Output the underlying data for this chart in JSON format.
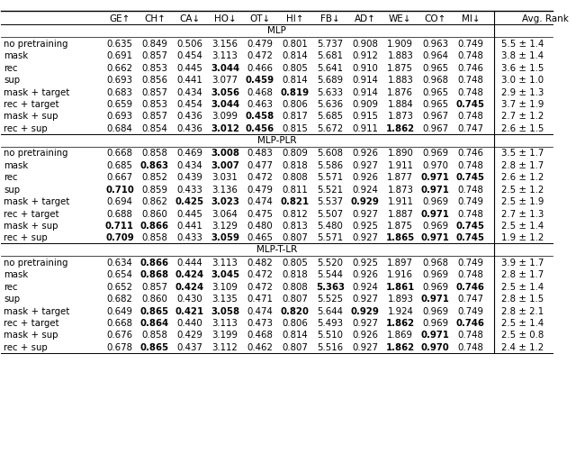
{
  "col_headers": [
    "GE↑",
    "CH↑",
    "CA↓",
    "HO↓",
    "OT↓",
    "HI↑",
    "FB↓",
    "AD↑",
    "WE↓",
    "CO↑",
    "MI↓",
    "Avg. Rank"
  ],
  "sections": [
    {
      "title": "MLP",
      "rows": [
        {
          "name": "no pretraining",
          "vals": [
            "0.635",
            "0.849",
            "0.506",
            "3.156",
            "0.479",
            "0.801",
            "5.737",
            "0.908",
            "1.909",
            "0.963",
            "0.749",
            "5.5 ± 1.4"
          ]
        },
        {
          "name": "mask",
          "vals": [
            "0.691",
            "0.857",
            "0.454",
            "3.113",
            "0.472",
            "0.814",
            "5.681",
            "0.912",
            "1.883",
            "0.964",
            "0.748",
            "3.8 ± 1.4"
          ]
        },
        {
          "name": "rec",
          "vals": [
            "0.662",
            "0.853",
            "0.445",
            "3.044",
            "0.466",
            "0.805",
            "5.641",
            "0.910",
            "1.875",
            "0.965",
            "0.746",
            "3.6 ± 1.5"
          ]
        },
        {
          "name": "sup",
          "vals": [
            "0.693",
            "0.856",
            "0.441",
            "3.077",
            "0.459",
            "0.814",
            "5.689",
            "0.914",
            "1.883",
            "0.968",
            "0.748",
            "3.0 ± 1.0"
          ]
        },
        {
          "name": "mask + target",
          "vals": [
            "0.683",
            "0.857",
            "0.434",
            "3.056",
            "0.468",
            "0.819",
            "5.633",
            "0.914",
            "1.876",
            "0.965",
            "0.748",
            "2.9 ± 1.3"
          ]
        },
        {
          "name": "rec + target",
          "vals": [
            "0.659",
            "0.853",
            "0.454",
            "3.044",
            "0.463",
            "0.806",
            "5.636",
            "0.909",
            "1.884",
            "0.965",
            "0.745",
            "3.7 ± 1.9"
          ]
        },
        {
          "name": "mask + sup",
          "vals": [
            "0.693",
            "0.857",
            "0.436",
            "3.099",
            "0.458",
            "0.817",
            "5.685",
            "0.915",
            "1.873",
            "0.967",
            "0.748",
            "2.7 ± 1.2"
          ]
        },
        {
          "name": "rec + sup",
          "vals": [
            "0.684",
            "0.854",
            "0.436",
            "3.012",
            "0.456",
            "0.815",
            "5.672",
            "0.911",
            "1.862",
            "0.967",
            "0.747",
            "2.6 ± 1.5"
          ]
        }
      ],
      "bold": [
        [
          false,
          false,
          false,
          false,
          false,
          false,
          false,
          false,
          false,
          false,
          false,
          false
        ],
        [
          false,
          false,
          false,
          false,
          false,
          false,
          false,
          false,
          false,
          false,
          false,
          false
        ],
        [
          false,
          false,
          false,
          true,
          false,
          false,
          false,
          false,
          false,
          false,
          false,
          false
        ],
        [
          false,
          false,
          false,
          false,
          true,
          false,
          false,
          false,
          false,
          false,
          false,
          false
        ],
        [
          false,
          false,
          false,
          true,
          false,
          true,
          false,
          false,
          false,
          false,
          false,
          false
        ],
        [
          false,
          false,
          false,
          true,
          false,
          false,
          false,
          false,
          false,
          false,
          true,
          false
        ],
        [
          false,
          false,
          false,
          false,
          true,
          false,
          false,
          false,
          false,
          false,
          false,
          false
        ],
        [
          false,
          false,
          false,
          true,
          true,
          false,
          false,
          false,
          true,
          false,
          false,
          false
        ]
      ]
    },
    {
      "title": "MLP-PLR",
      "rows": [
        {
          "name": "no pretraining",
          "vals": [
            "0.668",
            "0.858",
            "0.469",
            "3.008",
            "0.483",
            "0.809",
            "5.608",
            "0.926",
            "1.890",
            "0.969",
            "0.746",
            "3.5 ± 1.7"
          ]
        },
        {
          "name": "mask",
          "vals": [
            "0.685",
            "0.863",
            "0.434",
            "3.007",
            "0.477",
            "0.818",
            "5.586",
            "0.927",
            "1.911",
            "0.970",
            "0.748",
            "2.8 ± 1.7"
          ]
        },
        {
          "name": "rec",
          "vals": [
            "0.667",
            "0.852",
            "0.439",
            "3.031",
            "0.472",
            "0.808",
            "5.571",
            "0.926",
            "1.877",
            "0.971",
            "0.745",
            "2.6 ± 1.2"
          ]
        },
        {
          "name": "sup",
          "vals": [
            "0.710",
            "0.859",
            "0.433",
            "3.136",
            "0.479",
            "0.811",
            "5.521",
            "0.924",
            "1.873",
            "0.971",
            "0.748",
            "2.5 ± 1.2"
          ]
        },
        {
          "name": "mask + target",
          "vals": [
            "0.694",
            "0.862",
            "0.425",
            "3.023",
            "0.474",
            "0.821",
            "5.537",
            "0.929",
            "1.911",
            "0.969",
            "0.749",
            "2.5 ± 1.9"
          ]
        },
        {
          "name": "rec + target",
          "vals": [
            "0.688",
            "0.860",
            "0.445",
            "3.064",
            "0.475",
            "0.812",
            "5.507",
            "0.927",
            "1.887",
            "0.971",
            "0.748",
            "2.7 ± 1.3"
          ]
        },
        {
          "name": "mask + sup",
          "vals": [
            "0.711",
            "0.866",
            "0.441",
            "3.129",
            "0.480",
            "0.813",
            "5.480",
            "0.925",
            "1.875",
            "0.969",
            "0.745",
            "2.5 ± 1.4"
          ]
        },
        {
          "name": "rec + sup",
          "vals": [
            "0.709",
            "0.858",
            "0.433",
            "3.059",
            "0.465",
            "0.807",
            "5.571",
            "0.927",
            "1.865",
            "0.971",
            "0.745",
            "1.9 ± 1.2"
          ]
        }
      ],
      "bold": [
        [
          false,
          false,
          false,
          true,
          false,
          false,
          false,
          false,
          false,
          false,
          false,
          false
        ],
        [
          false,
          true,
          false,
          true,
          false,
          false,
          false,
          false,
          false,
          false,
          false,
          false
        ],
        [
          false,
          false,
          false,
          false,
          false,
          false,
          false,
          false,
          false,
          true,
          true,
          false
        ],
        [
          true,
          false,
          false,
          false,
          false,
          false,
          false,
          false,
          false,
          true,
          false,
          false
        ],
        [
          false,
          false,
          true,
          true,
          false,
          true,
          false,
          true,
          false,
          false,
          false,
          false
        ],
        [
          false,
          false,
          false,
          false,
          false,
          false,
          false,
          false,
          false,
          true,
          false,
          false
        ],
        [
          true,
          true,
          false,
          false,
          false,
          false,
          false,
          false,
          false,
          false,
          true,
          false
        ],
        [
          true,
          false,
          false,
          true,
          false,
          false,
          false,
          false,
          true,
          true,
          true,
          false
        ]
      ]
    },
    {
      "title": "MLP-T-LR",
      "rows": [
        {
          "name": "no pretraining",
          "vals": [
            "0.634",
            "0.866",
            "0.444",
            "3.113",
            "0.482",
            "0.805",
            "5.520",
            "0.925",
            "1.897",
            "0.968",
            "0.749",
            "3.9 ± 1.7"
          ]
        },
        {
          "name": "mask",
          "vals": [
            "0.654",
            "0.868",
            "0.424",
            "3.045",
            "0.472",
            "0.818",
            "5.544",
            "0.926",
            "1.916",
            "0.969",
            "0.748",
            "2.8 ± 1.7"
          ]
        },
        {
          "name": "rec",
          "vals": [
            "0.652",
            "0.857",
            "0.424",
            "3.109",
            "0.472",
            "0.808",
            "5.363",
            "0.924",
            "1.861",
            "0.969",
            "0.746",
            "2.5 ± 1.4"
          ]
        },
        {
          "name": "sup",
          "vals": [
            "0.682",
            "0.860",
            "0.430",
            "3.135",
            "0.471",
            "0.807",
            "5.525",
            "0.927",
            "1.893",
            "0.971",
            "0.747",
            "2.8 ± 1.5"
          ]
        },
        {
          "name": "mask + target",
          "vals": [
            "0.649",
            "0.865",
            "0.421",
            "3.058",
            "0.474",
            "0.820",
            "5.644",
            "0.929",
            "1.924",
            "0.969",
            "0.749",
            "2.8 ± 2.1"
          ]
        },
        {
          "name": "rec + target",
          "vals": [
            "0.668",
            "0.864",
            "0.440",
            "3.113",
            "0.473",
            "0.806",
            "5.493",
            "0.927",
            "1.862",
            "0.969",
            "0.746",
            "2.5 ± 1.4"
          ]
        },
        {
          "name": "mask + sup",
          "vals": [
            "0.676",
            "0.858",
            "0.429",
            "3.199",
            "0.468",
            "0.814",
            "5.510",
            "0.926",
            "1.869",
            "0.971",
            "0.748",
            "2.5 ± 0.8"
          ]
        },
        {
          "name": "rec + sup",
          "vals": [
            "0.678",
            "0.865",
            "0.437",
            "3.112",
            "0.462",
            "0.807",
            "5.516",
            "0.927",
            "1.862",
            "0.970",
            "0.748",
            "2.4 ± 1.2"
          ]
        }
      ],
      "bold": [
        [
          false,
          true,
          false,
          false,
          false,
          false,
          false,
          false,
          false,
          false,
          false,
          false
        ],
        [
          false,
          true,
          true,
          true,
          false,
          false,
          false,
          false,
          false,
          false,
          false,
          false
        ],
        [
          false,
          false,
          true,
          false,
          false,
          false,
          true,
          false,
          true,
          false,
          true,
          false
        ],
        [
          false,
          false,
          false,
          false,
          false,
          false,
          false,
          false,
          false,
          true,
          false,
          false
        ],
        [
          false,
          true,
          true,
          true,
          false,
          true,
          false,
          true,
          false,
          false,
          false,
          false
        ],
        [
          false,
          true,
          false,
          false,
          false,
          false,
          false,
          false,
          true,
          false,
          true,
          false
        ],
        [
          false,
          false,
          false,
          false,
          false,
          false,
          false,
          false,
          false,
          true,
          false,
          false
        ],
        [
          false,
          true,
          false,
          false,
          false,
          false,
          false,
          false,
          true,
          true,
          false,
          false
        ]
      ]
    }
  ]
}
